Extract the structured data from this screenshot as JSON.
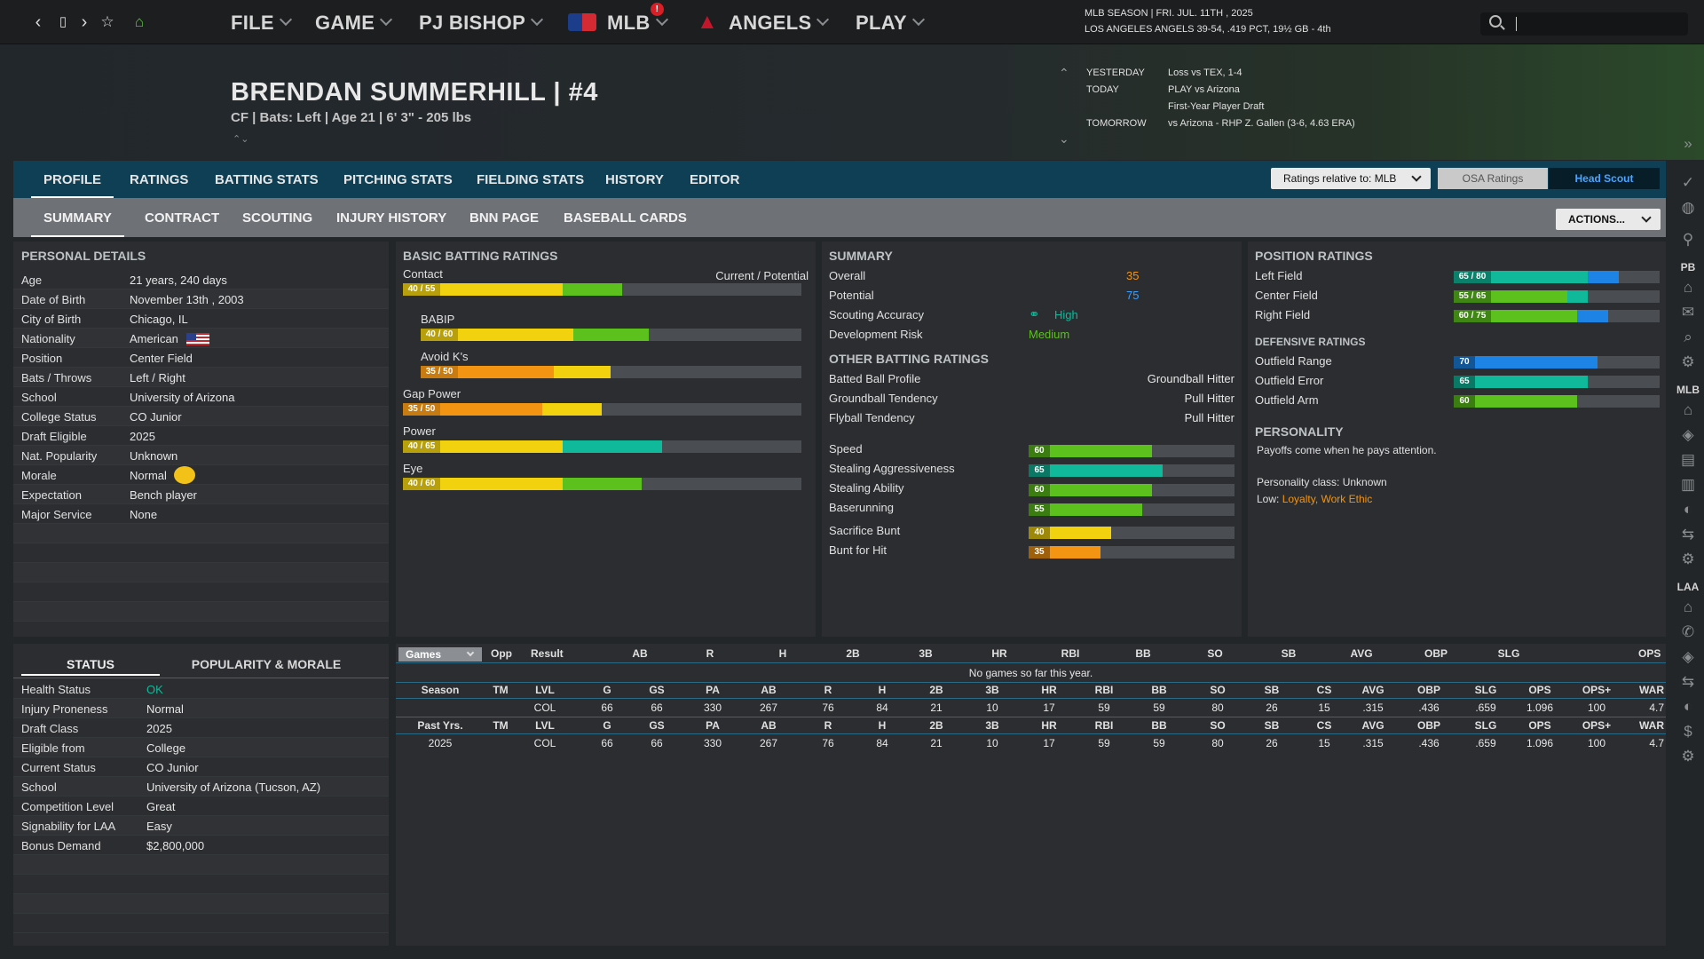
{
  "nav": {
    "menus": [
      {
        "label": "FILE"
      },
      {
        "label": "GAME"
      },
      {
        "label": "PJ BISHOP"
      },
      {
        "label": "MLB",
        "badge": "!"
      },
      {
        "label": "ANGELS"
      },
      {
        "label": "PLAY"
      }
    ]
  },
  "season": {
    "line1": "MLB SEASON  |  FRI. JUL. 11TH , 2025",
    "line2": "LOS ANGELES ANGELS   39-54, .419 PCT, 19½ GB - 4th"
  },
  "player": {
    "name": "BRENDAN SUMMERHILL  |  #4",
    "info": "CF | Bats: Left  |  Age 21  |  6' 3\"  - 205 lbs"
  },
  "schedule": [
    {
      "label": "YESTERDAY",
      "value": "Loss vs TEX, 1-4"
    },
    {
      "label": "TODAY",
      "value": "PLAY vs Arizona"
    },
    {
      "label": "",
      "value": "First-Year Player Draft"
    },
    {
      "label": "TOMORROW",
      "value": "vs Arizona - RHP Z. Gallen (3-6, 4.63 ERA)"
    }
  ],
  "tabs": [
    "PROFILE",
    "RATINGS",
    "BATTING STATS",
    "PITCHING STATS",
    "FIELDING STATS",
    "HISTORY",
    "EDITOR"
  ],
  "subtabs": [
    "SUMMARY",
    "CONTRACT",
    "SCOUTING",
    "INJURY HISTORY",
    "BNN PAGE",
    "BASEBALL CARDS"
  ],
  "controls": {
    "ratings_relative": "Ratings relative to: MLB",
    "osa": "OSA Ratings",
    "head_scout": "Head Scout",
    "actions": "ACTIONS..."
  },
  "personal": {
    "title": "PERSONAL DETAILS",
    "rows": [
      {
        "label": "Age",
        "value": "21 years, 240 days"
      },
      {
        "label": "Date of Birth",
        "value": "November 13th , 2003"
      },
      {
        "label": "City of Birth",
        "value": "Chicago, IL"
      },
      {
        "label": "Nationality",
        "value": "American"
      },
      {
        "label": "Position",
        "value": "Center Field"
      },
      {
        "label": "Bats / Throws",
        "value": "Left / Right"
      },
      {
        "label": "School",
        "value": "University of Arizona"
      },
      {
        "label": "College Status",
        "value": "CO Junior"
      },
      {
        "label": "Draft Eligible",
        "value": "2025"
      },
      {
        "label": "Nat. Popularity",
        "value": "Unknown"
      },
      {
        "label": "Morale",
        "value": "Normal"
      },
      {
        "label": "Expectation",
        "value": "Bench player"
      },
      {
        "label": "Major Service",
        "value": "None"
      }
    ]
  },
  "batting": {
    "title": "BASIC BATTING RATINGS",
    "header": "Current / Potential",
    "rows": [
      {
        "name": "Contact",
        "cur": 40,
        "pot": 55,
        "label": "40 / 55",
        "indent": false
      },
      {
        "name": "BABIP",
        "cur": 40,
        "pot": 60,
        "label": "40 / 60",
        "indent": true
      },
      {
        "name": "Avoid K's",
        "cur": 35,
        "pot": 50,
        "label": "35 / 50",
        "indent": true
      },
      {
        "name": "Gap Power",
        "cur": 35,
        "pot": 50,
        "label": "35 / 50",
        "indent": false
      },
      {
        "name": "Power",
        "cur": 40,
        "pot": 65,
        "label": "40 / 65",
        "indent": false
      },
      {
        "name": "Eye",
        "cur": 40,
        "pot": 60,
        "label": "40 / 60",
        "indent": false
      }
    ]
  },
  "summary": {
    "title": "SUMMARY",
    "overall_label": "Overall",
    "overall": "35",
    "potential_label": "Potential",
    "potential": "75",
    "accuracy_label": "Scouting Accuracy",
    "accuracy": "High",
    "risk_label": "Development Risk",
    "risk": "Medium"
  },
  "other_batting": {
    "title": "OTHER BATTING RATINGS",
    "rows": [
      {
        "label": "Batted Ball Profile",
        "value": "Groundball Hitter"
      },
      {
        "label": "Groundball Tendency",
        "value": "Pull Hitter"
      },
      {
        "label": "Flyball Tendency",
        "value": "Pull Hitter"
      }
    ]
  },
  "running": [
    {
      "label": "Speed",
      "value": 60
    },
    {
      "label": "Stealing Aggressiveness",
      "value": 65
    },
    {
      "label": "Stealing Ability",
      "value": 60
    },
    {
      "label": "Baserunning",
      "value": 55
    },
    {
      "label": "Sacrifice Bunt",
      "value": 40
    },
    {
      "label": "Bunt for Hit",
      "value": 35
    }
  ],
  "position": {
    "title": "POSITION RATINGS",
    "rows": [
      {
        "label": "Left Field",
        "cur": 65,
        "pot": 80,
        "text": "65 / 80"
      },
      {
        "label": "Center Field",
        "cur": 55,
        "pot": 65,
        "text": "55 / 65"
      },
      {
        "label": "Right Field",
        "cur": 60,
        "pot": 75,
        "text": "60 / 75"
      }
    ]
  },
  "defense": {
    "title": "DEFENSIVE RATINGS",
    "rows": [
      {
        "label": "Outfield Range",
        "value": 70
      },
      {
        "label": "Outfield Error",
        "value": 65
      },
      {
        "label": "Outfield Arm",
        "value": 60
      }
    ]
  },
  "personality": {
    "title": "PERSONALITY",
    "quote": "Payoffs come when he pays attention.",
    "class": "Personality class: Unknown",
    "low_label": "Low:",
    "low_value": "Loyalty, Work Ethic"
  },
  "status_tabs": [
    "STATUS",
    "POPULARITY & MORALE"
  ],
  "status": [
    {
      "label": "Health Status",
      "value": "OK"
    },
    {
      "label": "Injury Proneness",
      "value": "Normal"
    },
    {
      "label": "Draft Class",
      "value": "2025"
    },
    {
      "label": "Eligible from",
      "value": "College"
    },
    {
      "label": "Current Status",
      "value": "CO Junior"
    },
    {
      "label": "School",
      "value": "University of Arizona (Tucson, AZ)"
    },
    {
      "label": "Competition Level",
      "value": "Great"
    },
    {
      "label": "Signability for LAA",
      "value": "Easy"
    },
    {
      "label": "Bonus Demand",
      "value": "$2,800,000"
    }
  ],
  "games": {
    "select": "Games",
    "headers": [
      "Opp",
      "Result",
      "AB",
      "R",
      "H",
      "2B",
      "3B",
      "HR",
      "RBI",
      "BB",
      "SO",
      "SB",
      "AVG",
      "OBP",
      "SLG",
      "OPS"
    ],
    "empty": "No games so far this year."
  },
  "stats": {
    "season_headers": [
      "Season",
      "TM",
      "LVL",
      "G",
      "GS",
      "PA",
      "AB",
      "R",
      "H",
      "2B",
      "3B",
      "HR",
      "RBI",
      "BB",
      "SO",
      "SB",
      "CS",
      "AVG",
      "OBP",
      "SLG",
      "OPS",
      "OPS+",
      "WAR"
    ],
    "season_row": [
      "",
      "",
      "COL",
      "66",
      "66",
      "330",
      "267",
      "76",
      "84",
      "21",
      "10",
      "17",
      "59",
      "59",
      "80",
      "26",
      "15",
      ".315",
      ".436",
      ".659",
      "1.096",
      "100",
      "4.7"
    ],
    "past_headers": [
      "Past Yrs.",
      "TM",
      "LVL",
      "G",
      "GS",
      "PA",
      "AB",
      "R",
      "H",
      "2B",
      "3B",
      "HR",
      "RBI",
      "BB",
      "SO",
      "SB",
      "CS",
      "AVG",
      "OBP",
      "SLG",
      "OPS",
      "OPS+",
      "WAR"
    ],
    "past_row": [
      "2025",
      "",
      "COL",
      "66",
      "66",
      "330",
      "267",
      "76",
      "84",
      "21",
      "10",
      "17",
      "59",
      "59",
      "80",
      "26",
      "15",
      ".315",
      ".436",
      ".659",
      "1.096",
      "100",
      "4.7"
    ]
  },
  "sidebar": {
    "labels": [
      "PB",
      "MLB",
      "LAA"
    ]
  },
  "colors": {
    "yellow": "#f2d20f",
    "orange": "#f39412",
    "green": "#5cc11d",
    "teal": "#10b99a",
    "blue": "#1d84e6",
    "accent_blue": "#3aa0ff",
    "tab_bar": "#0e3f55"
  }
}
